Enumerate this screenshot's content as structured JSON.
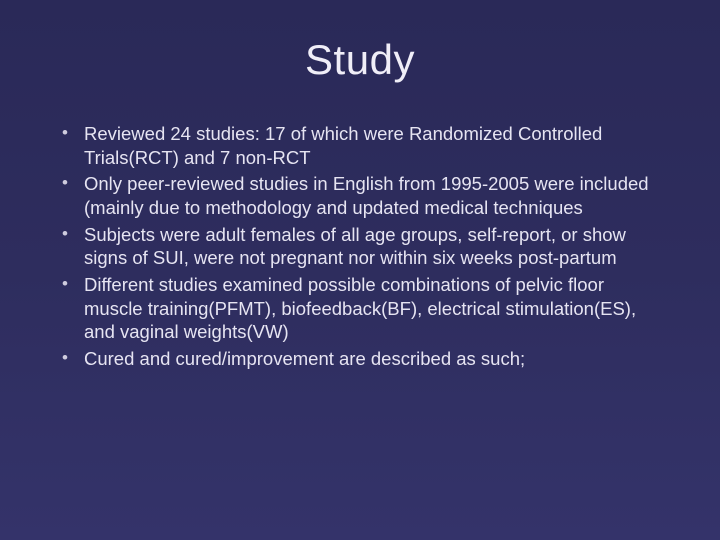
{
  "slide": {
    "title": "Study",
    "title_fontsize": 42,
    "title_color": "#f0eef8",
    "body_fontsize": 18.5,
    "body_color": "#e6e4f2",
    "bullet_color": "#cfccde",
    "background_gradient": [
      "#2a2958",
      "#2e2d5e",
      "#34336a"
    ],
    "bullets": [
      "Reviewed 24 studies: 17 of which were Randomized Controlled Trials(RCT) and 7 non-RCT",
      "Only peer-reviewed studies in English from 1995-2005 were included (mainly due to methodology and updated medical techniques",
      "Subjects were adult females of all age groups, self-report, or show signs of SUI, were not pregnant nor within six weeks post-partum",
      "Different studies examined possible combinations of pelvic floor muscle training(PFMT), biofeedback(BF), electrical stimulation(ES), and vaginal weights(VW)",
      "Cured and cured/improvement are described as such;"
    ]
  }
}
